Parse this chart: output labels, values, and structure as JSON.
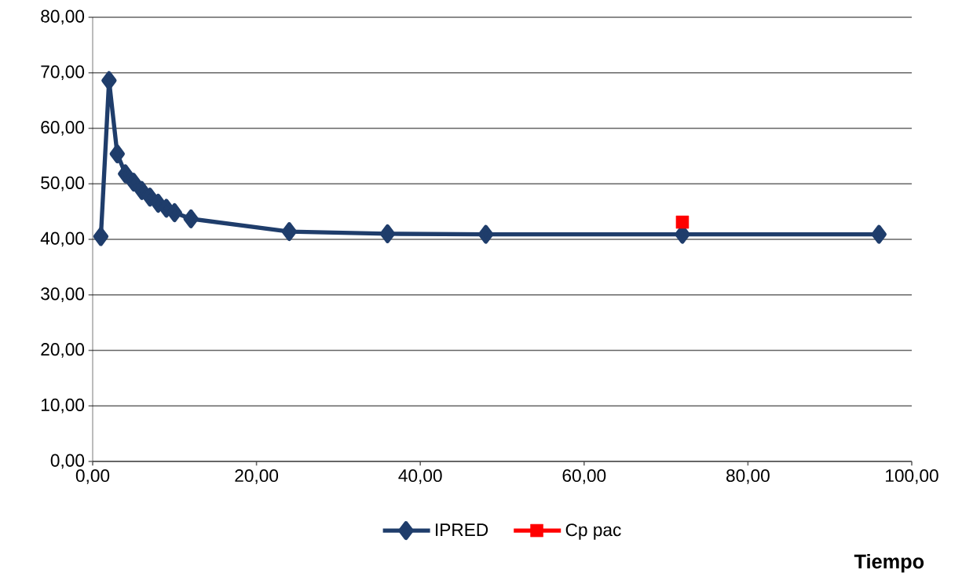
{
  "chart_data": {
    "type": "line",
    "xlabel": "Tiempo",
    "series": [
      {
        "name": "IPRED",
        "color": "#1f3d6b",
        "marker": "diamond",
        "x": [
          1,
          2,
          3,
          4,
          5,
          6,
          7,
          8,
          9,
          10,
          12,
          24,
          36,
          48,
          72,
          96
        ],
        "values": [
          40.5,
          68.6,
          55.4,
          51.8,
          50.3,
          48.8,
          47.6,
          46.5,
          45.6,
          44.8,
          43.7,
          41.4,
          41.0,
          40.9,
          40.9,
          40.9
        ]
      },
      {
        "name": "Cp pac",
        "color": "#ff0000",
        "marker": "square",
        "type": "scatter",
        "x": [
          72
        ],
        "values": [
          43.1
        ]
      }
    ],
    "xlim": [
      0,
      100
    ],
    "ylim": [
      0,
      80
    ],
    "xticks": [
      {
        "value": 0,
        "label": "0,00"
      },
      {
        "value": 20,
        "label": "20,00"
      },
      {
        "value": 40,
        "label": "40,00"
      },
      {
        "value": 60,
        "label": "60,00"
      },
      {
        "value": 80,
        "label": "80,00"
      },
      {
        "value": 100,
        "label": "100,00"
      }
    ],
    "yticks": [
      {
        "value": 0,
        "label": "0,00"
      },
      {
        "value": 10,
        "label": "10,00"
      },
      {
        "value": 20,
        "label": "20,00"
      },
      {
        "value": 30,
        "label": "30,00"
      },
      {
        "value": 40,
        "label": "40,00"
      },
      {
        "value": 50,
        "label": "50,00"
      },
      {
        "value": 60,
        "label": "60,00"
      },
      {
        "value": 70,
        "label": "70,00"
      },
      {
        "value": 80,
        "label": "80,00"
      }
    ],
    "grid": "y",
    "legend": "bottom"
  }
}
